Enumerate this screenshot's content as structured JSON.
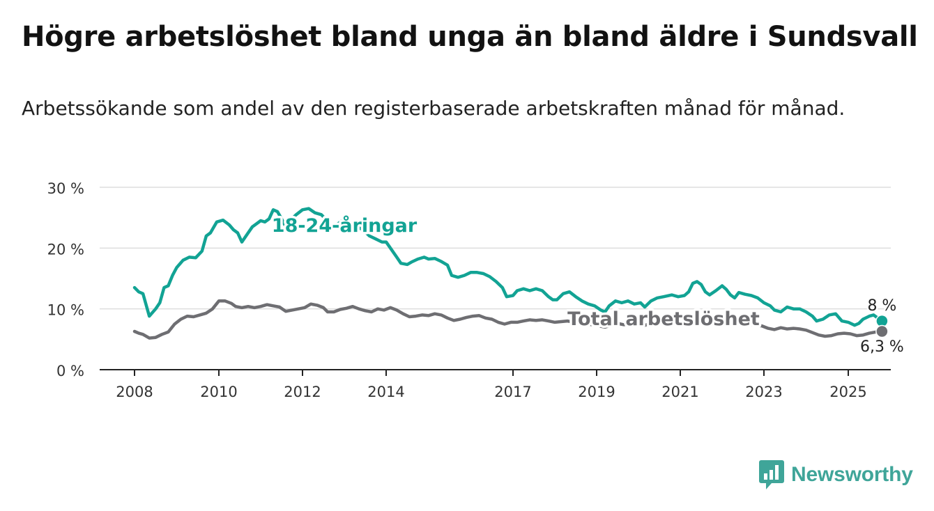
{
  "title": "Högre arbetslöshet bland unga än bland äldre i Sundsvall",
  "subtitle": "Arbetssökande som andel av den registerbaserade arbetskraften månad för månad.",
  "brand": {
    "name": "Newsworthy",
    "icon": "newsworthy-bar-chart-logo-icon"
  },
  "colors": {
    "youth": "#12a394",
    "total": "#6e6e72",
    "grid": "#dddddd",
    "axis": "#222222"
  },
  "chart_data": {
    "type": "line",
    "title": "Högre arbetslöshet bland unga än bland äldre i Sundsvall",
    "ylabel": "",
    "xlabel": "",
    "ylim": [
      0,
      30
    ],
    "xlim": [
      2007.6,
      2026.0
    ],
    "y_ticks": [
      0,
      10,
      20,
      30
    ],
    "y_tick_labels": [
      "0 %",
      "10 %",
      "20 %",
      "30 %"
    ],
    "x_ticks": [
      2008,
      2010,
      2012,
      2014,
      2017,
      2019,
      2021,
      2023,
      2025
    ],
    "x_tick_labels": [
      "2008",
      "2010",
      "2012",
      "2014",
      "2017",
      "2019",
      "2021",
      "2023",
      "2025"
    ],
    "grid": true,
    "series": [
      {
        "name": "18-24-åringar",
        "color": "#12a394",
        "end_label": "8 %",
        "points": [
          [
            2008.0,
            13.5
          ],
          [
            2008.1,
            12.8
          ],
          [
            2008.2,
            12.5
          ],
          [
            2008.35,
            8.8
          ],
          [
            2008.5,
            10.0
          ],
          [
            2008.6,
            11.0
          ],
          [
            2008.7,
            13.5
          ],
          [
            2008.8,
            13.8
          ],
          [
            2008.9,
            15.5
          ],
          [
            2009.0,
            16.8
          ],
          [
            2009.15,
            18.0
          ],
          [
            2009.3,
            18.5
          ],
          [
            2009.45,
            18.4
          ],
          [
            2009.6,
            19.5
          ],
          [
            2009.7,
            22.0
          ],
          [
            2009.8,
            22.5
          ],
          [
            2009.95,
            24.3
          ],
          [
            2010.1,
            24.6
          ],
          [
            2010.25,
            23.8
          ],
          [
            2010.35,
            23.0
          ],
          [
            2010.45,
            22.5
          ],
          [
            2010.55,
            21.0
          ],
          [
            2010.7,
            22.5
          ],
          [
            2010.8,
            23.5
          ],
          [
            2010.9,
            24.0
          ],
          [
            2011.0,
            24.5
          ],
          [
            2011.1,
            24.3
          ],
          [
            2011.2,
            24.8
          ],
          [
            2011.3,
            26.3
          ],
          [
            2011.4,
            26.0
          ],
          [
            2011.5,
            24.8
          ],
          [
            2011.6,
            23.5
          ],
          [
            2011.7,
            24.5
          ],
          [
            2011.85,
            25.5
          ],
          [
            2012.0,
            26.3
          ],
          [
            2012.15,
            26.5
          ],
          [
            2012.3,
            25.8
          ],
          [
            2012.45,
            25.5
          ],
          [
            2012.55,
            24.8
          ],
          [
            2012.7,
            23.5
          ],
          [
            2012.85,
            24.0
          ],
          [
            2013.0,
            24.8
          ],
          [
            2013.15,
            23.5
          ],
          [
            2013.3,
            23.5
          ],
          [
            2013.45,
            23.0
          ],
          [
            2013.6,
            22.0
          ],
          [
            2013.75,
            21.5
          ],
          [
            2013.9,
            21.0
          ],
          [
            2014.0,
            21.0
          ],
          [
            2014.1,
            20.0
          ],
          [
            2014.25,
            18.5
          ],
          [
            2014.35,
            17.5
          ],
          [
            2014.5,
            17.3
          ],
          [
            2014.6,
            17.7
          ],
          [
            2014.75,
            18.2
          ],
          [
            2014.9,
            18.5
          ],
          [
            2015.0,
            18.2
          ],
          [
            2015.15,
            18.3
          ],
          [
            2015.3,
            17.8
          ],
          [
            2015.45,
            17.2
          ],
          [
            2015.55,
            15.5
          ],
          [
            2015.7,
            15.2
          ],
          [
            2015.85,
            15.5
          ],
          [
            2016.0,
            16.0
          ],
          [
            2016.15,
            16.0
          ],
          [
            2016.3,
            15.8
          ],
          [
            2016.45,
            15.3
          ],
          [
            2016.6,
            14.5
          ],
          [
            2016.75,
            13.5
          ],
          [
            2016.85,
            12.0
          ],
          [
            2017.0,
            12.2
          ],
          [
            2017.1,
            13.0
          ],
          [
            2017.25,
            13.3
          ],
          [
            2017.4,
            13.0
          ],
          [
            2017.55,
            13.3
          ],
          [
            2017.7,
            13.0
          ],
          [
            2017.85,
            12.0
          ],
          [
            2017.95,
            11.5
          ],
          [
            2018.05,
            11.5
          ],
          [
            2018.2,
            12.5
          ],
          [
            2018.35,
            12.8
          ],
          [
            2018.5,
            12.0
          ],
          [
            2018.65,
            11.3
          ],
          [
            2018.8,
            10.8
          ],
          [
            2018.95,
            10.5
          ],
          [
            2019.1,
            9.8
          ],
          [
            2019.2,
            9.5
          ],
          [
            2019.3,
            10.5
          ],
          [
            2019.45,
            11.3
          ],
          [
            2019.6,
            11.0
          ],
          [
            2019.75,
            11.3
          ],
          [
            2019.9,
            10.8
          ],
          [
            2020.05,
            11.0
          ],
          [
            2020.15,
            10.3
          ],
          [
            2020.3,
            11.3
          ],
          [
            2020.45,
            11.8
          ],
          [
            2020.6,
            12.0
          ],
          [
            2020.8,
            12.3
          ],
          [
            2020.95,
            12.0
          ],
          [
            2021.1,
            12.2
          ],
          [
            2021.2,
            12.8
          ],
          [
            2021.3,
            14.2
          ],
          [
            2021.4,
            14.5
          ],
          [
            2021.5,
            14.0
          ],
          [
            2021.6,
            12.8
          ],
          [
            2021.7,
            12.3
          ],
          [
            2021.85,
            13.0
          ],
          [
            2022.0,
            13.8
          ],
          [
            2022.1,
            13.2
          ],
          [
            2022.2,
            12.3
          ],
          [
            2022.3,
            11.8
          ],
          [
            2022.4,
            12.7
          ],
          [
            2022.55,
            12.4
          ],
          [
            2022.7,
            12.2
          ],
          [
            2022.85,
            11.8
          ],
          [
            2023.0,
            11.0
          ],
          [
            2023.15,
            10.5
          ],
          [
            2023.25,
            9.8
          ],
          [
            2023.4,
            9.5
          ],
          [
            2023.55,
            10.3
          ],
          [
            2023.7,
            10.0
          ],
          [
            2023.85,
            10.0
          ],
          [
            2024.0,
            9.5
          ],
          [
            2024.15,
            8.8
          ],
          [
            2024.25,
            8.0
          ],
          [
            2024.4,
            8.3
          ],
          [
            2024.55,
            9.0
          ],
          [
            2024.7,
            9.2
          ],
          [
            2024.85,
            8.0
          ],
          [
            2025.0,
            7.8
          ],
          [
            2025.15,
            7.3
          ],
          [
            2025.25,
            7.6
          ],
          [
            2025.35,
            8.3
          ],
          [
            2025.5,
            8.8
          ],
          [
            2025.6,
            9.0
          ],
          [
            2025.7,
            8.5
          ],
          [
            2025.8,
            8.0
          ]
        ]
      },
      {
        "name": "Total arbetslöshet",
        "color": "#6e6e72",
        "end_label": "6,3 %",
        "points": [
          [
            2008.0,
            6.3
          ],
          [
            2008.1,
            6.0
          ],
          [
            2008.2,
            5.8
          ],
          [
            2008.35,
            5.2
          ],
          [
            2008.5,
            5.3
          ],
          [
            2008.65,
            5.8
          ],
          [
            2008.8,
            6.2
          ],
          [
            2008.95,
            7.5
          ],
          [
            2009.1,
            8.3
          ],
          [
            2009.25,
            8.8
          ],
          [
            2009.4,
            8.7
          ],
          [
            2009.55,
            9.0
          ],
          [
            2009.7,
            9.3
          ],
          [
            2009.85,
            10.0
          ],
          [
            2010.0,
            11.3
          ],
          [
            2010.15,
            11.3
          ],
          [
            2010.3,
            10.9
          ],
          [
            2010.4,
            10.4
          ],
          [
            2010.55,
            10.2
          ],
          [
            2010.7,
            10.4
          ],
          [
            2010.85,
            10.2
          ],
          [
            2011.0,
            10.4
          ],
          [
            2011.15,
            10.7
          ],
          [
            2011.3,
            10.5
          ],
          [
            2011.45,
            10.3
          ],
          [
            2011.6,
            9.6
          ],
          [
            2011.75,
            9.8
          ],
          [
            2011.9,
            10.0
          ],
          [
            2012.05,
            10.2
          ],
          [
            2012.2,
            10.8
          ],
          [
            2012.35,
            10.6
          ],
          [
            2012.5,
            10.2
          ],
          [
            2012.6,
            9.5
          ],
          [
            2012.75,
            9.5
          ],
          [
            2012.9,
            9.9
          ],
          [
            2013.05,
            10.1
          ],
          [
            2013.2,
            10.4
          ],
          [
            2013.35,
            10.0
          ],
          [
            2013.5,
            9.7
          ],
          [
            2013.65,
            9.5
          ],
          [
            2013.8,
            10.0
          ],
          [
            2013.95,
            9.8
          ],
          [
            2014.1,
            10.2
          ],
          [
            2014.25,
            9.8
          ],
          [
            2014.4,
            9.2
          ],
          [
            2014.55,
            8.7
          ],
          [
            2014.7,
            8.8
          ],
          [
            2014.85,
            9.0
          ],
          [
            2015.0,
            8.9
          ],
          [
            2015.15,
            9.2
          ],
          [
            2015.3,
            9.0
          ],
          [
            2015.45,
            8.5
          ],
          [
            2015.6,
            8.1
          ],
          [
            2015.75,
            8.3
          ],
          [
            2015.9,
            8.6
          ],
          [
            2016.05,
            8.8
          ],
          [
            2016.2,
            8.9
          ],
          [
            2016.35,
            8.5
          ],
          [
            2016.5,
            8.3
          ],
          [
            2016.65,
            7.8
          ],
          [
            2016.8,
            7.5
          ],
          [
            2016.95,
            7.8
          ],
          [
            2017.1,
            7.8
          ],
          [
            2017.25,
            8.0
          ],
          [
            2017.4,
            8.2
          ],
          [
            2017.55,
            8.1
          ],
          [
            2017.7,
            8.2
          ],
          [
            2017.85,
            8.0
          ],
          [
            2018.0,
            7.8
          ],
          [
            2018.15,
            7.9
          ],
          [
            2018.3,
            8.0
          ],
          [
            2018.45,
            7.8
          ],
          [
            2018.6,
            7.7
          ],
          [
            2018.75,
            7.5
          ],
          [
            2018.9,
            7.4
          ],
          [
            2019.05,
            7.2
          ],
          [
            2019.2,
            7.0
          ],
          [
            2019.35,
            7.3
          ],
          [
            2019.5,
            7.6
          ],
          [
            2019.65,
            7.4
          ],
          [
            2019.8,
            7.5
          ],
          [
            2019.95,
            7.4
          ],
          [
            2020.1,
            7.2
          ],
          [
            2020.25,
            7.5
          ],
          [
            2020.4,
            7.7
          ],
          [
            2020.55,
            7.8
          ],
          [
            2020.7,
            7.8
          ],
          [
            2020.85,
            7.6
          ],
          [
            2021.0,
            7.7
          ],
          [
            2021.15,
            7.8
          ],
          [
            2021.3,
            8.0
          ],
          [
            2021.45,
            7.9
          ],
          [
            2021.6,
            7.7
          ],
          [
            2021.75,
            7.8
          ],
          [
            2021.9,
            7.9
          ],
          [
            2022.05,
            7.8
          ],
          [
            2022.2,
            7.6
          ],
          [
            2022.35,
            7.7
          ],
          [
            2022.5,
            7.6
          ],
          [
            2022.65,
            7.5
          ],
          [
            2022.8,
            7.3
          ],
          [
            2022.95,
            7.2
          ],
          [
            2023.1,
            6.8
          ],
          [
            2023.25,
            6.6
          ],
          [
            2023.4,
            6.9
          ],
          [
            2023.55,
            6.7
          ],
          [
            2023.7,
            6.8
          ],
          [
            2023.85,
            6.7
          ],
          [
            2024.0,
            6.5
          ],
          [
            2024.15,
            6.1
          ],
          [
            2024.3,
            5.7
          ],
          [
            2024.45,
            5.5
          ],
          [
            2024.6,
            5.6
          ],
          [
            2024.75,
            5.9
          ],
          [
            2024.9,
            6.0
          ],
          [
            2025.05,
            5.9
          ],
          [
            2025.2,
            5.6
          ],
          [
            2025.35,
            5.7
          ],
          [
            2025.5,
            6.0
          ],
          [
            2025.65,
            6.2
          ],
          [
            2025.8,
            6.3
          ]
        ]
      }
    ],
    "annotations": [
      {
        "text": "18-24-åringar",
        "series": 0,
        "anchor_x": 2013.0,
        "anchor_y": 22.7
      },
      {
        "text": "Total arbetslöshet",
        "series": 1,
        "anchor_x": 2020.6,
        "anchor_y": 7.3
      }
    ]
  }
}
